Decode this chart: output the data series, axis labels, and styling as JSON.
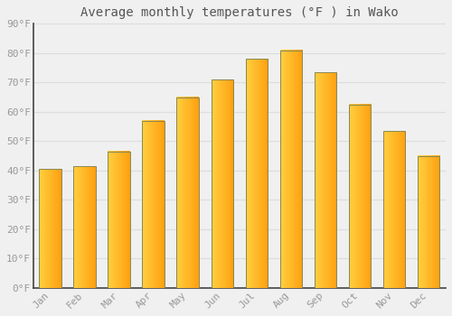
{
  "title": "Average monthly temperatures (°F ) in Wako",
  "months": [
    "Jan",
    "Feb",
    "Mar",
    "Apr",
    "May",
    "Jun",
    "Jul",
    "Aug",
    "Sep",
    "Oct",
    "Nov",
    "Dec"
  ],
  "values": [
    40.5,
    41.5,
    46.5,
    57,
    65,
    71,
    78,
    81,
    73.5,
    62.5,
    53.5,
    45
  ],
  "bar_color_main": "#FFA500",
  "bar_color_light": "#FFD040",
  "bar_color_dark": "#E08000",
  "bar_edge_color": "#888855",
  "ylim": [
    0,
    90
  ],
  "yticks": [
    0,
    10,
    20,
    30,
    40,
    50,
    60,
    70,
    80,
    90
  ],
  "ytick_labels": [
    "0°F",
    "10°F",
    "20°F",
    "30°F",
    "40°F",
    "50°F",
    "60°F",
    "70°F",
    "80°F",
    "90°F"
  ],
  "background_color": "#F0F0F0",
  "grid_color": "#DDDDDD",
  "title_fontsize": 10,
  "tick_fontsize": 8,
  "font_family": "monospace",
  "tick_color": "#999999",
  "spine_color": "#444444"
}
